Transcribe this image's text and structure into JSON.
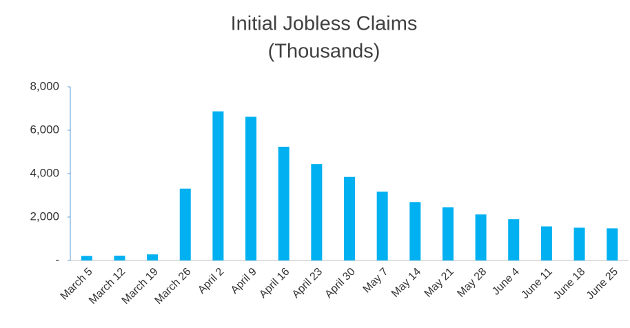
{
  "chart_data": {
    "type": "bar",
    "title": "Initial Jobless Claims",
    "subtitle": "(Thousands)",
    "categories": [
      "March 5",
      "March 12",
      "March 19",
      "March 26",
      "April 2",
      "April 9",
      "April 16",
      "April 23",
      "April 30",
      "May 7",
      "May 14",
      "May 21",
      "May 28",
      "June 4",
      "June 11",
      "June 18",
      "June 25"
    ],
    "values": [
      210,
      220,
      280,
      3310,
      6870,
      6620,
      5240,
      4440,
      3850,
      3170,
      2690,
      2450,
      2120,
      1900,
      1570,
      1510,
      1480
    ],
    "color": "#00b0f0",
    "ylim": [
      0,
      8000
    ],
    "yticks": [
      {
        "value": 0,
        "label": "-"
      },
      {
        "value": 2000,
        "label": "2,000"
      },
      {
        "value": 4000,
        "label": "4,000"
      },
      {
        "value": 6000,
        "label": "6,000"
      },
      {
        "value": 8000,
        "label": "8,000"
      }
    ],
    "grid": false
  }
}
